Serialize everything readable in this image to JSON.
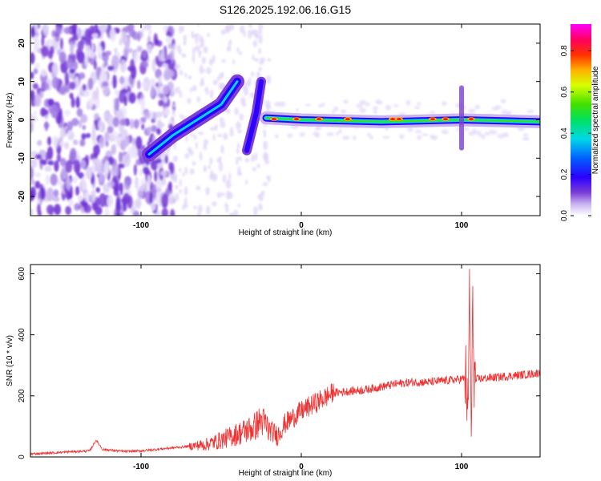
{
  "title": "S126.2025.192.06.16.G15",
  "chart_data": [
    {
      "type": "heatmap",
      "name": "spectrogram",
      "xlabel": "Height of straight line (km)",
      "ylabel": "Frequency (Hz)",
      "xlim": [
        -169,
        149
      ],
      "ylim": [
        -25,
        25
      ],
      "x_ticks": [
        -100,
        0,
        100
      ],
      "y_ticks": [
        -20,
        -10,
        0,
        10,
        20
      ],
      "colorbar": {
        "label": "Normalized spectral amplitude",
        "range": [
          0,
          0.93
        ],
        "ticks": [
          0.0,
          0.2,
          0.4,
          0.6,
          0.8
        ],
        "colormap": [
          "#ffffff",
          "#d9c8f2",
          "#7b3fd6",
          "#5a1fd0",
          "#0000ff",
          "#00e5e5",
          "#00d000",
          "#ffff00",
          "#ff7f00",
          "#ff0000",
          "#ff00ff"
        ]
      },
      "description_points": {
        "carrier_line": [
          [
            -22,
            0.5
          ],
          [
            0,
            0
          ],
          [
            50,
            -0.5
          ],
          [
            100,
            0
          ],
          [
            149,
            -0.5
          ]
        ],
        "chirp_segment": [
          [
            -95,
            -9
          ],
          [
            -80,
            -4
          ],
          [
            -65,
            0
          ],
          [
            -50,
            4
          ],
          [
            -40,
            10
          ]
        ],
        "chirp_segment_2": [
          [
            -34,
            -8
          ],
          [
            -28,
            2
          ],
          [
            -25,
            10
          ]
        ]
      }
    },
    {
      "type": "line",
      "name": "snr",
      "xlabel": "Height of straight line (km)",
      "ylabel": "SNR (10 * v/v)",
      "xlim": [
        -169,
        149
      ],
      "ylim": [
        0,
        630
      ],
      "x_ticks": [
        -100,
        0,
        100
      ],
      "y_ticks": [
        0,
        200,
        400,
        600
      ],
      "color": "#ee3333",
      "series": [
        {
          "x": [
            -169,
            -160,
            -150,
            -140,
            -132,
            -128,
            -124,
            -115,
            -110,
            -100,
            -90,
            -80,
            -70,
            -60,
            -50,
            -40,
            -30,
            -25,
            -20,
            -15,
            -10,
            -5,
            0,
            5,
            10,
            20,
            30,
            40,
            50,
            60,
            70,
            80,
            90,
            100,
            103,
            104,
            105,
            106,
            107,
            108,
            110,
            120,
            130,
            140,
            149
          ],
          "y": [
            10,
            12,
            15,
            18,
            20,
            55,
            25,
            20,
            18,
            20,
            25,
            30,
            35,
            40,
            55,
            75,
            95,
            120,
            90,
            70,
            110,
            130,
            150,
            165,
            180,
            210,
            215,
            220,
            230,
            240,
            245,
            245,
            250,
            255,
            260,
            80,
            600,
            40,
            480,
            250,
            255,
            260,
            265,
            270,
            275
          ]
        }
      ]
    }
  ]
}
